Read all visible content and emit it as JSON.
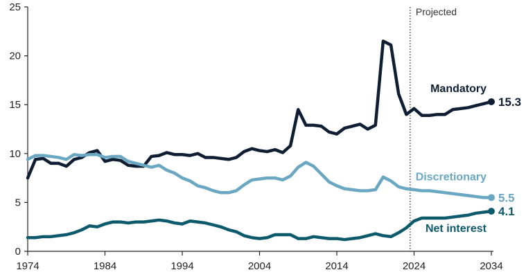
{
  "chart_data": {
    "type": "line",
    "title": "",
    "xlabel": "",
    "ylabel": "",
    "xlim": [
      1974,
      2034
    ],
    "ylim": [
      0,
      25
    ],
    "xticks": [
      "1974",
      "1984",
      "1994",
      "2004",
      "2014",
      "2024",
      "2034"
    ],
    "yticks": [
      "0",
      "5",
      "10",
      "15",
      "20",
      "25"
    ],
    "grid": false,
    "projection": {
      "label": "Projected",
      "x": 2023.5
    },
    "x": [
      1974,
      1975,
      1976,
      1977,
      1978,
      1979,
      1980,
      1981,
      1982,
      1983,
      1984,
      1985,
      1986,
      1987,
      1988,
      1989,
      1990,
      1991,
      1992,
      1993,
      1994,
      1995,
      1996,
      1997,
      1998,
      1999,
      2000,
      2001,
      2002,
      2003,
      2004,
      2005,
      2006,
      2007,
      2008,
      2009,
      2010,
      2011,
      2012,
      2013,
      2014,
      2015,
      2016,
      2017,
      2018,
      2019,
      2020,
      2021,
      2022,
      2023,
      2024,
      2025,
      2026,
      2027,
      2028,
      2029,
      2030,
      2031,
      2032,
      2033,
      2034
    ],
    "series": [
      {
        "name": "Mandatory",
        "color": "#0f1e33",
        "end_label": "15.3",
        "values": [
          7.5,
          9.4,
          9.5,
          9.0,
          9.0,
          8.7,
          9.4,
          9.6,
          10.1,
          10.3,
          9.2,
          9.4,
          9.3,
          8.8,
          8.7,
          8.7,
          9.7,
          9.8,
          10.1,
          9.9,
          9.9,
          9.8,
          10.0,
          9.6,
          9.6,
          9.5,
          9.4,
          9.6,
          10.2,
          10.5,
          10.3,
          10.2,
          10.4,
          10.1,
          10.8,
          14.5,
          12.9,
          12.9,
          12.8,
          12.2,
          12.0,
          12.6,
          12.8,
          13.0,
          12.5,
          12.9,
          21.5,
          21.1,
          16.1,
          14.0,
          14.6,
          13.9,
          13.9,
          14.0,
          14.0,
          14.5,
          14.6,
          14.7,
          14.9,
          15.1,
          15.3
        ]
      },
      {
        "name": "Discretionary",
        "color": "#6aa7c3",
        "end_label": "5.5",
        "values": [
          9.4,
          9.8,
          9.8,
          9.7,
          9.6,
          9.4,
          9.9,
          9.8,
          9.9,
          9.9,
          9.6,
          9.7,
          9.7,
          9.2,
          9.0,
          8.8,
          8.6,
          8.8,
          8.3,
          8.0,
          7.5,
          7.2,
          6.7,
          6.5,
          6.2,
          6.0,
          6.0,
          6.2,
          6.8,
          7.3,
          7.4,
          7.5,
          7.5,
          7.3,
          7.7,
          8.6,
          9.1,
          8.7,
          7.9,
          7.1,
          6.7,
          6.4,
          6.3,
          6.2,
          6.2,
          6.3,
          7.6,
          7.2,
          6.6,
          6.4,
          6.3,
          6.2,
          6.2,
          6.1,
          6.0,
          5.9,
          5.8,
          5.7,
          5.6,
          5.5,
          5.5
        ]
      },
      {
        "name": "Net interest",
        "color": "#0d5a6c",
        "end_label": "4.1",
        "values": [
          1.4,
          1.4,
          1.5,
          1.5,
          1.6,
          1.7,
          1.9,
          2.2,
          2.6,
          2.5,
          2.8,
          3.0,
          3.0,
          2.9,
          3.0,
          3.0,
          3.1,
          3.2,
          3.1,
          2.9,
          2.8,
          3.1,
          3.0,
          2.9,
          2.7,
          2.5,
          2.2,
          2.0,
          1.6,
          1.4,
          1.3,
          1.4,
          1.7,
          1.7,
          1.7,
          1.3,
          1.3,
          1.5,
          1.4,
          1.3,
          1.3,
          1.2,
          1.3,
          1.4,
          1.6,
          1.8,
          1.6,
          1.5,
          1.9,
          2.4,
          3.1,
          3.4,
          3.4,
          3.4,
          3.4,
          3.5,
          3.6,
          3.7,
          3.9,
          4.0,
          4.1
        ]
      }
    ]
  }
}
